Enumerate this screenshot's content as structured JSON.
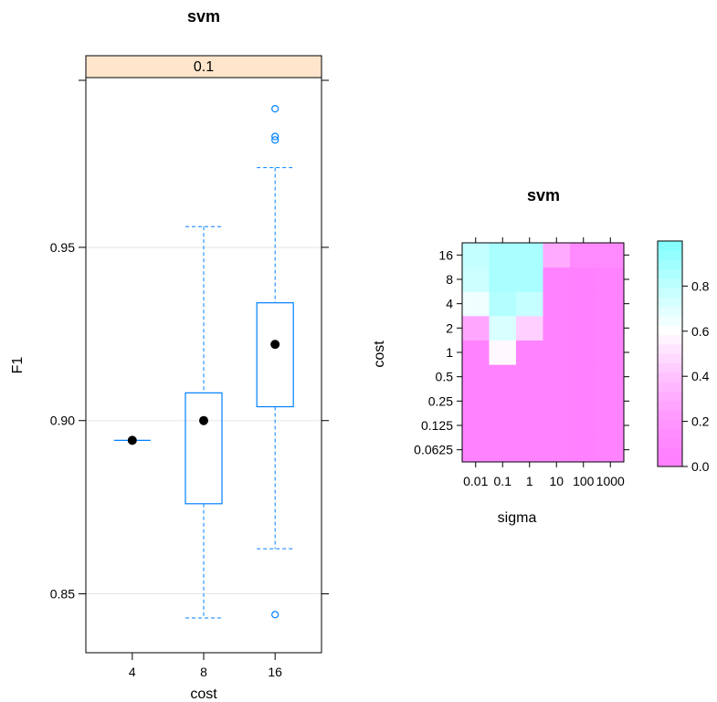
{
  "chart_data": [
    {
      "type": "boxplot",
      "title": "svm",
      "strip_label": "0.1",
      "xlabel": "cost",
      "ylabel": "F1",
      "categories": [
        "4",
        "8",
        "16"
      ],
      "ylim": [
        0.833,
        0.999
      ],
      "yticks": [
        "0.85",
        "0.90",
        "0.95"
      ],
      "ytick_values": [
        0.85,
        0.9,
        0.95
      ],
      "grid": true,
      "colors": {
        "box": "#0080ff",
        "median": "#000000",
        "strip": "#ffe5cc",
        "grid": "#e6e6e6"
      },
      "boxes": [
        {
          "category": "4",
          "whisker_low": 0.8943,
          "q1": 0.8943,
          "median": 0.8943,
          "q3": 0.8943,
          "whisker_high": 0.8943,
          "outliers": []
        },
        {
          "category": "8",
          "whisker_low": 0.843,
          "q1": 0.876,
          "median": 0.9,
          "q3": 0.908,
          "whisker_high": 0.956,
          "outliers": []
        },
        {
          "category": "16",
          "whisker_low": 0.863,
          "q1": 0.904,
          "median": 0.922,
          "q3": 0.934,
          "whisker_high": 0.973,
          "outliers": [
            0.844,
            0.981,
            0.982,
            0.99
          ]
        }
      ]
    },
    {
      "type": "heatmap",
      "title": "svm",
      "xlabel": "sigma",
      "ylabel": "cost",
      "x_categories": [
        "0.01",
        "0.1",
        "1",
        "10",
        "100",
        "1000"
      ],
      "y_categories": [
        "0.0625",
        "0.125",
        "0.25",
        "0.5",
        "1",
        "2",
        "4",
        "8",
        "16"
      ],
      "values": [
        [
          0.06,
          0.06,
          0.06,
          0.06,
          0.03,
          0.06
        ],
        [
          0.06,
          0.06,
          0.06,
          0.06,
          0.03,
          0.06
        ],
        [
          0.06,
          0.06,
          0.06,
          0.06,
          0.03,
          0.06
        ],
        [
          0.06,
          0.06,
          0.06,
          0.06,
          0.03,
          0.06
        ],
        [
          0.06,
          0.58,
          0.06,
          0.06,
          0.03,
          0.06
        ],
        [
          0.28,
          0.72,
          0.45,
          0.06,
          0.03,
          0.06
        ],
        [
          0.65,
          0.84,
          0.78,
          0.06,
          0.03,
          0.06
        ],
        [
          0.76,
          0.87,
          0.87,
          0.06,
          0.03,
          0.06
        ],
        [
          0.79,
          0.87,
          0.87,
          0.3,
          0.12,
          0.12
        ]
      ],
      "colorbar": {
        "ticks": [
          "0.0",
          "0.2",
          "0.4",
          "0.6",
          "0.8"
        ],
        "tick_values": [
          0,
          0.2,
          0.4,
          0.6,
          0.8
        ],
        "range": [
          0,
          1
        ],
        "low_color": "#ff80ff",
        "high_color": "#80ffff"
      }
    }
  ]
}
